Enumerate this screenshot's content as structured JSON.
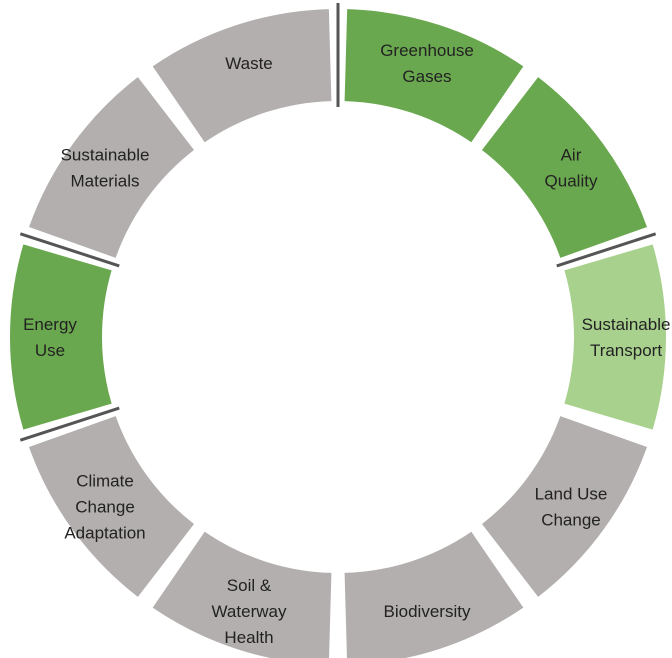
{
  "colors": {
    "green_dark": "#6aa84f",
    "green_light": "#a9d18e",
    "gray": "#b2afae",
    "divider": "#555555"
  },
  "segments": [
    {
      "id": "greenhouse-gases",
      "lines": [
        "Greenhouse",
        "Gases"
      ],
      "color": "green_dark"
    },
    {
      "id": "air-quality",
      "lines": [
        "Air",
        "Quality"
      ],
      "color": "green_dark"
    },
    {
      "id": "sustainable-transport",
      "lines": [
        "Sustainable",
        "Transport"
      ],
      "color": "green_light"
    },
    {
      "id": "land-use-change",
      "lines": [
        "Land Use",
        "Change"
      ],
      "color": "gray"
    },
    {
      "id": "biodiversity",
      "lines": [
        "Biodiversity"
      ],
      "color": "gray"
    },
    {
      "id": "soil-waterway-health",
      "lines": [
        "Soil &",
        "Waterway",
        "Health"
      ],
      "color": "gray"
    },
    {
      "id": "climate-change-adaptation",
      "lines": [
        "Climate",
        "Change",
        "Adaptation"
      ],
      "color": "gray"
    },
    {
      "id": "energy-use",
      "lines": [
        "Energy",
        "Use"
      ],
      "color": "green_dark"
    },
    {
      "id": "sustainable-materials",
      "lines": [
        "Sustainable",
        "Materials"
      ],
      "color": "gray"
    },
    {
      "id": "waste",
      "lines": [
        "Waste"
      ],
      "color": "gray"
    }
  ]
}
